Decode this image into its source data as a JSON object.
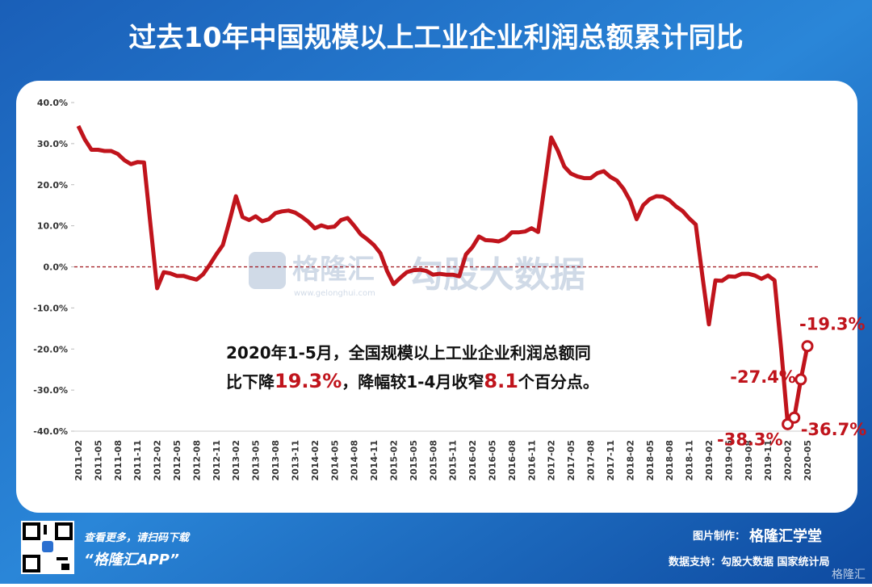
{
  "header": {
    "title": "过去10年中国规模以上工业企业利润总额累计同比"
  },
  "chart_data": {
    "type": "line",
    "categories": [
      "2011-02",
      null,
      null,
      "2011-05",
      null,
      null,
      "2011-08",
      null,
      null,
      "2011-11",
      null,
      null,
      "2012-02",
      null,
      null,
      "2012-05",
      null,
      null,
      "2012-08",
      null,
      null,
      "2012-11",
      null,
      null,
      "2013-02",
      null,
      null,
      "2013-05",
      null,
      null,
      "2013-08",
      null,
      null,
      "2013-11",
      null,
      null,
      "2014-02",
      null,
      null,
      "2014-05",
      null,
      null,
      "2014-08",
      null,
      null,
      "2014-11",
      null,
      null,
      "2015-02",
      null,
      null,
      "2015-05",
      null,
      null,
      "2015-08",
      null,
      null,
      "2015-11",
      null,
      null,
      "2016-02",
      null,
      null,
      "2016-05",
      null,
      null,
      "2016-08",
      null,
      null,
      "2016-11",
      null,
      null,
      "2017-02",
      null,
      null,
      "2017-05",
      null,
      null,
      "2017-08",
      null,
      null,
      "2017-11",
      null,
      null,
      "2018-02",
      null,
      null,
      "2018-05",
      null,
      null,
      "2018-08",
      null,
      null,
      "2018-11",
      null,
      null,
      "2019-02",
      null,
      null,
      "2019-05",
      null,
      null,
      "2019-08",
      null,
      null,
      "2019-11",
      null,
      null,
      "2020-02",
      null,
      null,
      "2020-05"
    ],
    "series": [
      {
        "name": "利润总额累计同比",
        "color": "#c0141c",
        "values": [
          34.3,
          31,
          28.5,
          28.5,
          28.2,
          28.2,
          27.5,
          26,
          25,
          25.5,
          25.4,
          10,
          -5.2,
          -1.3,
          -1.6,
          -2.2,
          -2.2,
          -2.7,
          -3.1,
          -1.8,
          0.5,
          3.0,
          5.3,
          11,
          17.2,
          12.1,
          11.4,
          12.3,
          11.1,
          11.6,
          13.1,
          13.5,
          13.7,
          13.2,
          12.2,
          11,
          9.4,
          10.1,
          9.6,
          9.8,
          11.4,
          11.9,
          10.0,
          7.9,
          6.7,
          5.3,
          3.3,
          -1,
          -4.2,
          -2.7,
          -1.3,
          -0.8,
          -0.7,
          -1.0,
          -1.9,
          -1.7,
          -1.9,
          -1.9,
          -2.3,
          3,
          4.8,
          7.4,
          6.5,
          6.4,
          6.2,
          6.9,
          8.4,
          8.4,
          8.6,
          9.4,
          8.5,
          20,
          31.5,
          28.3,
          24.4,
          22.7,
          22,
          21.6,
          21.6,
          22.8,
          23.3,
          21.9,
          21,
          19,
          16.1,
          11.6,
          15,
          16.5,
          17.2,
          17.1,
          16.2,
          14.7,
          13.6,
          11.8,
          10.3,
          -2,
          -14,
          -3.3,
          -3.4,
          -2.3,
          -2.4,
          -1.7,
          -1.7,
          -2.1,
          -2.9,
          -2.1,
          -3.3,
          -20,
          -38.3,
          -36.7,
          -27.4,
          -19.3
        ],
        "value_labels": [
          null,
          null,
          null,
          null,
          null,
          null,
          null,
          null,
          null,
          null,
          null,
          null,
          null,
          null,
          null,
          null,
          null,
          null,
          null,
          null,
          null,
          null,
          null,
          null,
          null,
          null,
          null,
          null,
          null,
          null,
          null,
          null,
          null,
          null,
          null,
          null,
          null,
          null,
          null,
          null,
          null,
          null,
          null,
          null,
          null,
          null,
          null,
          null,
          null,
          null,
          null,
          null,
          null,
          null,
          null,
          null,
          null,
          null,
          null,
          null,
          null,
          null,
          null,
          null,
          null,
          null,
          null,
          null,
          null,
          null,
          null,
          null,
          null,
          null,
          null,
          null,
          null,
          null,
          null,
          null,
          null,
          null,
          null,
          null,
          null,
          null,
          null,
          null,
          null,
          null,
          null,
          null,
          null,
          null,
          null,
          null,
          null,
          null,
          null,
          null,
          null,
          null,
          null,
          null,
          null,
          null,
          null,
          null,
          "-38.3%",
          "-36.7%",
          "-27.4%",
          "-19.3%"
        ]
      }
    ],
    "ylim": [
      -40,
      40
    ],
    "yticks": [
      {
        "value": -40,
        "label": "-40.0%"
      },
      {
        "value": -30,
        "label": "-30.0%"
      },
      {
        "value": -20,
        "label": "-20.0%"
      },
      {
        "value": -10,
        "label": "-10.0%"
      },
      {
        "value": 0,
        "label": "0.0%"
      },
      {
        "value": 10,
        "label": "10.0%"
      },
      {
        "value": 20,
        "label": "20.0%"
      },
      {
        "value": 30,
        "label": "30.0%"
      },
      {
        "value": 40,
        "label": "40.0%"
      }
    ],
    "hline": 0,
    "hline_color": "#a0141c",
    "annotation": [
      "2020年1-5月，全国规模以上工业企业利润总额同",
      "比下降",
      "19.3%",
      "，降幅较1-4月收窄",
      "8.1",
      "个百分点。"
    ]
  },
  "watermark": {
    "brand": "格隆汇",
    "url": "www.gelonghui.com",
    "partner": "勾股大数据"
  },
  "footer": {
    "scan": "查看更多，请扫码下载",
    "app": "“格隆汇APP”",
    "made_by": "图片制作：",
    "studio": "格隆汇学堂",
    "source": "数据支持：勾股大数据  国家统计局",
    "corner": "格隆汇"
  }
}
